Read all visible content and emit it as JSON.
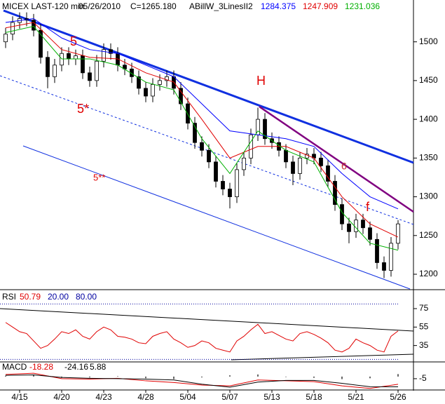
{
  "chart_data": [
    {
      "type": "candlestick",
      "title": "MICEX LAST-120 min",
      "date": "05/26/2010",
      "close_label": "C=1265.180",
      "indicator": "ABillW_3LinesII2",
      "open": [
        1500,
        1510,
        1525,
        1530,
        1528,
        1515,
        1480,
        1455,
        1470,
        1485,
        1478,
        1482,
        1460,
        1450,
        1475,
        1490,
        1485,
        1470,
        1465,
        1455,
        1440,
        1430,
        1445,
        1450,
        1455,
        1440,
        1420,
        1395,
        1370,
        1360,
        1345,
        1320,
        1310,
        1300,
        1335,
        1350,
        1380,
        1400,
        1375,
        1370,
        1360,
        1345,
        1330,
        1350,
        1355,
        1350,
        1340,
        1320,
        1290,
        1265,
        1255,
        1270,
        1260,
        1245,
        1215,
        1205,
        1240
      ],
      "high": [
        1518,
        1533,
        1538,
        1538,
        1536,
        1523,
        1488,
        1478,
        1493,
        1493,
        1490,
        1490,
        1468,
        1483,
        1498,
        1498,
        1493,
        1478,
        1473,
        1463,
        1448,
        1453,
        1458,
        1463,
        1463,
        1448,
        1428,
        1403,
        1378,
        1368,
        1353,
        1328,
        1318,
        1343,
        1358,
        1388,
        1415,
        1408,
        1383,
        1378,
        1368,
        1353,
        1358,
        1363,
        1363,
        1358,
        1348,
        1328,
        1298,
        1273,
        1278,
        1278,
        1268,
        1253,
        1223,
        1248,
        1270
      ],
      "low": [
        1492,
        1502,
        1517,
        1520,
        1507,
        1472,
        1440,
        1447,
        1462,
        1470,
        1470,
        1452,
        1442,
        1442,
        1467,
        1477,
        1462,
        1457,
        1447,
        1432,
        1422,
        1422,
        1437,
        1442,
        1432,
        1412,
        1387,
        1362,
        1352,
        1337,
        1312,
        1302,
        1285,
        1292,
        1327,
        1342,
        1372,
        1367,
        1362,
        1352,
        1337,
        1315,
        1322,
        1342,
        1342,
        1332,
        1312,
        1282,
        1257,
        1240,
        1247,
        1252,
        1237,
        1207,
        1195,
        1197,
        1232
      ],
      "close": [
        1510,
        1525,
        1530,
        1528,
        1515,
        1480,
        1455,
        1470,
        1485,
        1478,
        1482,
        1460,
        1450,
        1475,
        1490,
        1485,
        1470,
        1465,
        1455,
        1440,
        1430,
        1445,
        1450,
        1455,
        1440,
        1420,
        1395,
        1370,
        1360,
        1345,
        1320,
        1310,
        1300,
        1335,
        1350,
        1380,
        1400,
        1375,
        1370,
        1360,
        1345,
        1330,
        1350,
        1355,
        1350,
        1340,
        1320,
        1290,
        1265,
        1255,
        1270,
        1260,
        1245,
        1215,
        1205,
        1240,
        1265
      ],
      "series": [
        {
          "color": "#0000ff",
          "x": [
            0,
            4,
            8,
            12,
            16,
            20,
            24,
            28,
            32,
            36,
            40,
            44,
            48,
            52,
            56
          ],
          "values": [
            1525,
            1530,
            1505,
            1490,
            1485,
            1470,
            1455,
            1420,
            1385,
            1380,
            1375,
            1365,
            1330,
            1300,
            1284.375
          ]
        },
        {
          "color": "#e00000",
          "x": [
            0,
            4,
            8,
            12,
            16,
            20,
            24,
            28,
            32,
            36,
            40,
            44,
            48,
            52,
            56
          ],
          "values": [
            1518,
            1525,
            1490,
            1480,
            1478,
            1460,
            1448,
            1400,
            1350,
            1365,
            1365,
            1350,
            1300,
            1265,
            1247.909
          ]
        },
        {
          "color": "#00b000",
          "x": [
            0,
            4,
            8,
            12,
            16,
            20,
            24,
            28,
            32,
            36,
            40,
            44,
            48,
            52,
            56
          ],
          "values": [
            1512,
            1520,
            1478,
            1478,
            1470,
            1448,
            1438,
            1375,
            1330,
            1385,
            1360,
            1345,
            1280,
            1240,
            1231.036
          ]
        }
      ],
      "annotations": [
        "5",
        "5*",
        "5**",
        "H",
        "6",
        "f"
      ],
      "xlim": [
        -0.5,
        58.2
      ],
      "ylim": [
        1181,
        1554
      ],
      "yticks": [
        1200,
        1250,
        1300,
        1350,
        1400,
        1450,
        1500
      ],
      "xticks": [
        {
          "value": 2,
          "label": "4/15"
        },
        {
          "value": 8,
          "label": "4/20"
        },
        {
          "value": 14,
          "label": "4/23"
        },
        {
          "value": 20,
          "label": "4/28"
        },
        {
          "value": 26,
          "label": "5/04"
        },
        {
          "value": 32,
          "label": "5/07"
        },
        {
          "value": 38,
          "label": "5/13"
        },
        {
          "value": 44,
          "label": "5/18"
        },
        {
          "value": 50,
          "label": "5/21"
        },
        {
          "value": 56,
          "label": "5/26"
        }
      ]
    },
    {
      "type": "line",
      "label": "RSI",
      "color": "#e00000",
      "values": [
        60,
        55,
        50,
        48,
        40,
        32,
        35,
        42,
        50,
        48,
        52,
        45,
        42,
        50,
        55,
        52,
        45,
        44,
        42,
        38,
        37,
        45,
        48,
        50,
        42,
        38,
        33,
        35,
        40,
        38,
        32,
        30,
        28,
        40,
        45,
        52,
        58,
        48,
        50,
        46,
        42,
        40,
        48,
        50,
        47,
        43,
        38,
        30,
        28,
        32,
        42,
        38,
        35,
        30,
        28,
        45,
        50.79
      ],
      "levels": [
        {
          "value": 20,
          "label": "20.00"
        },
        {
          "value": 80,
          "label": "80.00"
        }
      ],
      "ylim": [
        18,
        94
      ],
      "yticks": [
        35,
        55,
        75
      ]
    },
    {
      "type": "line",
      "label": "MACD",
      "series": [
        {
          "color": "#e00000",
          "x": [
            0,
            4,
            8,
            12,
            16,
            20,
            24,
            28,
            32,
            36,
            40,
            44,
            48,
            52,
            56
          ],
          "values": [
            5,
            8,
            -5,
            -6,
            -4,
            -10,
            -14,
            -20,
            -22,
            -8,
            -10,
            -12,
            -22,
            -28,
            -18.28
          ]
        },
        {
          "color": "#000000",
          "x": [
            0,
            4,
            8,
            12,
            16,
            20,
            24,
            28,
            32,
            36,
            40,
            44,
            48,
            52,
            56
          ],
          "values": [
            3,
            4,
            -2,
            -4,
            -5,
            -6,
            -8,
            -18,
            -25,
            -13,
            -9,
            -9,
            -16,
            -24,
            -24.16
          ]
        }
      ],
      "histogram": [
        2,
        4,
        -3,
        -2,
        1,
        -4,
        -6,
        -2,
        3,
        5,
        -1,
        -3,
        -6,
        -4,
        5.88
      ],
      "ylim": [
        -30,
        33
      ],
      "yticks": [
        -5
      ]
    }
  ]
}
